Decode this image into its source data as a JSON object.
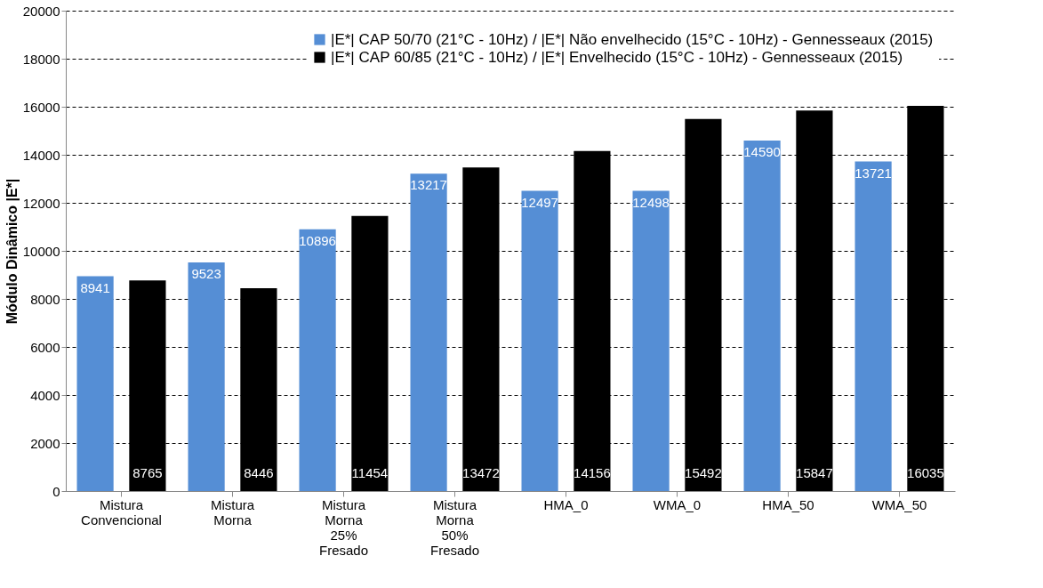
{
  "chart_data": {
    "type": "bar",
    "ylabel": "Módulo Dinâmico |E*|",
    "categories": [
      "Mistura Convencional",
      "Mistura Morna",
      "Mistura Morna 25% Fresado",
      "Mistura Morna 50% Fresado",
      "HMA_0",
      "WMA_0",
      "HMA_50",
      "WMA_50"
    ],
    "series": [
      {
        "name": "|E*| CAP 50/70 (21°C - 10Hz) / |E*| Não envelhecido (15°C - 10Hz) - Gennesseaux (2015)",
        "color": "#558ed5",
        "values": [
          8941,
          9523,
          10896,
          13217,
          12497,
          12498,
          14590,
          13721
        ]
      },
      {
        "name": "|E*| CAP 60/85 (21°C - 10Hz) / |E*| Envelhecido (15°C - 10Hz) - Gennesseaux (2015)",
        "color": "#000000",
        "values": [
          8765,
          8446,
          11454,
          13472,
          14156,
          15492,
          15847,
          16035
        ]
      }
    ],
    "ylim": [
      0,
      20000
    ],
    "yticks": [
      0,
      2000,
      4000,
      6000,
      8000,
      10000,
      12000,
      14000,
      16000,
      18000,
      20000
    ],
    "grid": "y",
    "legend": "top right",
    "data_labels": true
  }
}
